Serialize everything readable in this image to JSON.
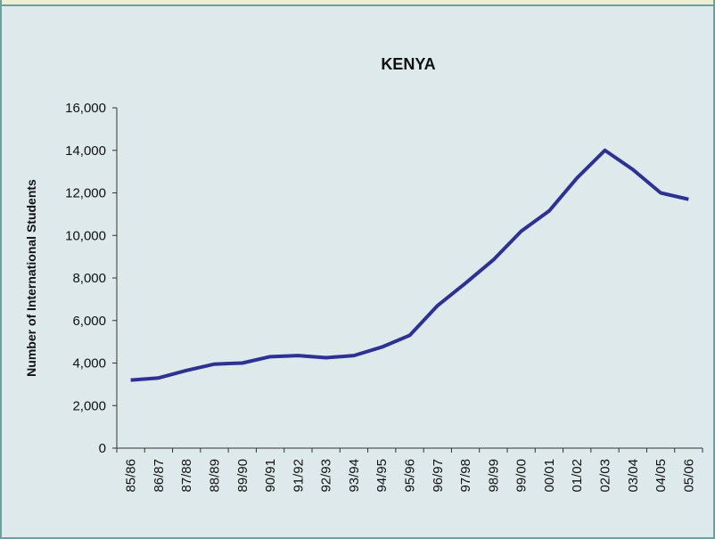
{
  "chart_data": {
    "type": "line",
    "title": "KENYA",
    "y_label": "Number of International Students",
    "categories": [
      "85/86",
      "86/87",
      "87/88",
      "88/89",
      "89/90",
      "90/91",
      "91/92",
      "92/93",
      "93/94",
      "94/95",
      "95/96",
      "96/97",
      "97/98",
      "98/99",
      "99/00",
      "00/01",
      "01/02",
      "02/03",
      "03/04",
      "04/05",
      "05/06"
    ],
    "series": [
      {
        "name": "Kenya",
        "color": "#2e3192",
        "values": [
          3200,
          3300,
          3650,
          3950,
          4000,
          4300,
          4350,
          4250,
          4350,
          4750,
          5300,
          6700,
          7750,
          8850,
          10200,
          11150,
          12700,
          14000,
          13100,
          12000,
          11700
        ]
      }
    ],
    "ylim": [
      0,
      16000
    ],
    "yticks": [
      0,
      {
        "value": 2000,
        "label": "2,000"
      },
      {
        "value": 4000,
        "label": "4,000"
      },
      {
        "value": 6000,
        "label": "6,000"
      },
      {
        "value": 8000,
        "label": "8,000"
      },
      {
        "value": 10000,
        "label": "10,000"
      },
      {
        "value": 12000,
        "label": "12,000"
      },
      {
        "value": 14000,
        "label": "14,000"
      },
      {
        "value": 16000,
        "label": "16,000"
      }
    ]
  }
}
